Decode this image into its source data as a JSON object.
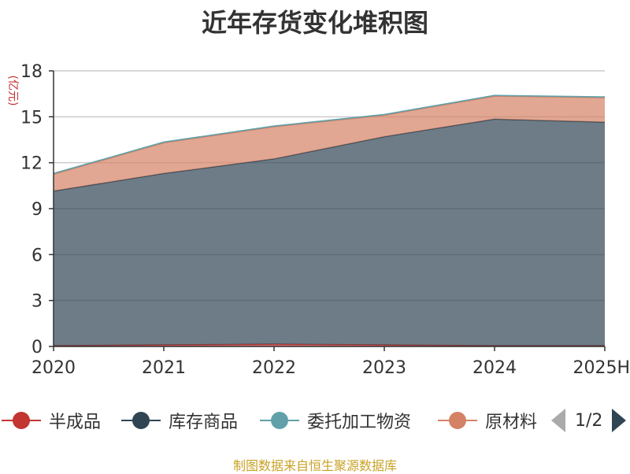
{
  "chart_data": {
    "type": "area",
    "title": "近年存货变化堆积图",
    "ylabel": "(亿元)",
    "categories": [
      "2020",
      "2021",
      "2022",
      "2023",
      "2024",
      "2025H"
    ],
    "ylim": [
      0,
      18
    ],
    "yticks": [
      0,
      3,
      6,
      9,
      12,
      15,
      18
    ],
    "stacked": true,
    "grid": true,
    "series": [
      {
        "name": "半成品",
        "color": "#c23531",
        "values": [
          0.05,
          0.1,
          0.15,
          0.1,
          0.05,
          0.05
        ]
      },
      {
        "name": "库存商品",
        "color": "#2f4554",
        "values": [
          10.1,
          11.2,
          12.1,
          13.6,
          14.8,
          14.6
        ]
      },
      {
        "name": "原材料",
        "color": "#d48265",
        "values": [
          1.1,
          2.0,
          2.1,
          1.4,
          1.5,
          1.6
        ]
      },
      {
        "name": "委托加工物资",
        "color": "#61a0a8",
        "values": [
          0.05,
          0.05,
          0.05,
          0.05,
          0.05,
          0.05
        ]
      }
    ]
  },
  "legend": {
    "items": [
      {
        "label": "半成品",
        "color": "#c23531"
      },
      {
        "label": "库存商品",
        "color": "#2f4554"
      },
      {
        "label": "委托加工物资",
        "color": "#61a0a8"
      },
      {
        "label": "原材料",
        "color": "#d48265"
      }
    ],
    "page": "1/2"
  },
  "source_note": "制图数据来自恒生聚源数据库"
}
